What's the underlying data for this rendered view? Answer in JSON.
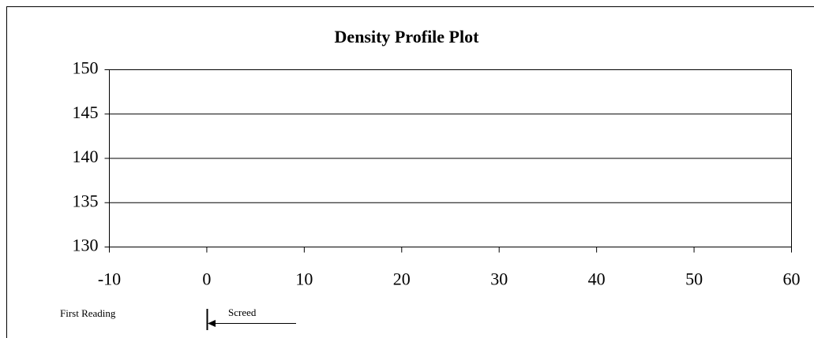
{
  "chart_data": {
    "type": "line",
    "title": "Density Profile Plot",
    "series": [],
    "xlim": [
      -10,
      60
    ],
    "xticks": [
      -10,
      0,
      10,
      20,
      30,
      40,
      50,
      60
    ],
    "ylim": [
      130,
      150
    ],
    "yticks": [
      130,
      135,
      140,
      145,
      150
    ],
    "grid": true,
    "annotations": [
      "First Reading",
      "Screed"
    ]
  }
}
